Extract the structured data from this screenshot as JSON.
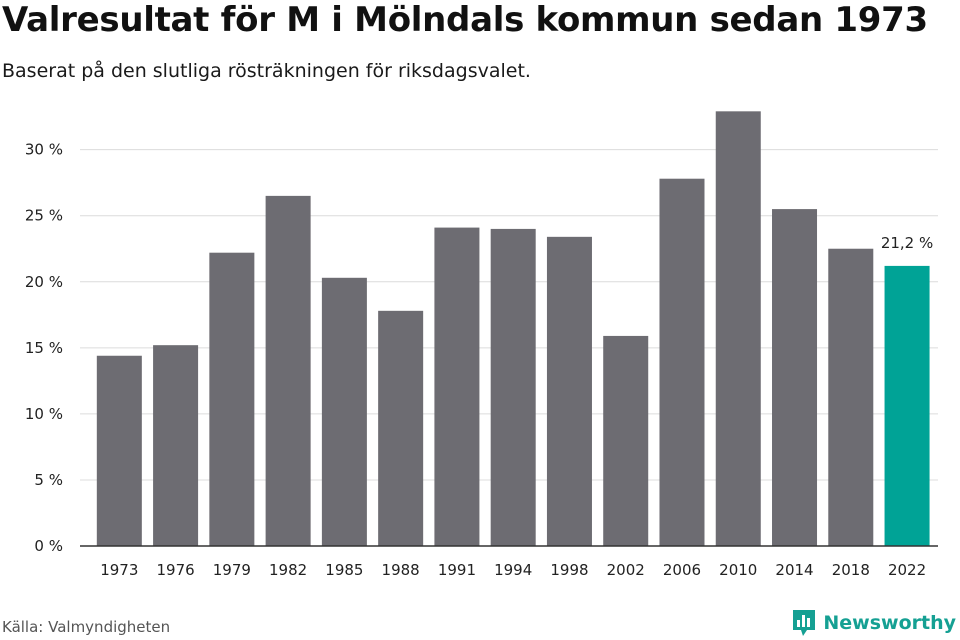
{
  "header": {
    "title": "Valresultat för M i Mölndals kommun sedan 1973",
    "subtitle": "Baserat på den slutliga rösträkningen för riksdagsvalet."
  },
  "footer": {
    "source": "Källa: Valmyndigheten",
    "brand": "Newsworthy",
    "brand_icon": "bar-chart-icon"
  },
  "colors": {
    "bar": "#6d6c72",
    "highlight": "#00a396",
    "grid": "#dcdcdc",
    "axis": "#333333",
    "brand": "#15a093"
  },
  "chart_data": {
    "type": "bar",
    "title": "Valresultat för M i Mölndals kommun sedan 1973",
    "subtitle": "Baserat på den slutliga rösträkningen för riksdagsvalet.",
    "categories": [
      "1973",
      "1976",
      "1979",
      "1982",
      "1985",
      "1988",
      "1991",
      "1994",
      "1998",
      "2002",
      "2006",
      "2010",
      "2014",
      "2018",
      "2022"
    ],
    "values": [
      14.4,
      15.2,
      22.2,
      26.5,
      20.3,
      17.8,
      24.1,
      24.0,
      23.4,
      15.9,
      27.8,
      32.9,
      25.5,
      22.5,
      21.2
    ],
    "ylim": [
      0,
      33
    ],
    "yticks": [
      0,
      5,
      10,
      15,
      20,
      25,
      30
    ],
    "ytick_labels": [
      "0 %",
      "5 %",
      "10 %",
      "15 %",
      "20 %",
      "25 %",
      "30 %"
    ],
    "highlight_index": 14,
    "annotations": [
      {
        "category": "2022",
        "text": "21,2 %"
      }
    ],
    "grid": true,
    "legend": "none"
  }
}
